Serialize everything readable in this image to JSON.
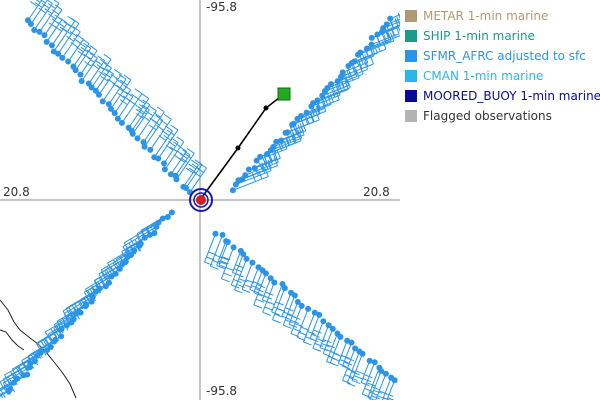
{
  "axes": {
    "top_lon": "-95.8",
    "bottom_lon": "-95.8",
    "left_lat": "20.8",
    "right_lat": "20.8"
  },
  "legend": [
    {
      "label": "METAR 1-min marine",
      "color": "#b09a73",
      "swatch": "#b09a73"
    },
    {
      "label": "SHIP 1-min marine",
      "color": "#1a9a8c",
      "swatch": "#1a9a8c"
    },
    {
      "label": "SFMR_AFRC adjusted to sfc",
      "color": "#2a95e8",
      "swatch": "#2a95e8"
    },
    {
      "label": "CMAN 1-min marine",
      "color": "#2ab7e8",
      "swatch": "#2ab7e8"
    },
    {
      "label": "MOORED_BUOY 1-min marine",
      "color": "#0a0a9a",
      "swatch": "#0a0a9a"
    },
    {
      "label": "Flagged observations",
      "color": "#333333",
      "swatch": "#b3b3b3"
    }
  ],
  "colors": {
    "obs": "#2a95e8",
    "track": "#000000",
    "track_end": "#22aa22",
    "center": "#cc2222",
    "ring": "#1a1aaa",
    "crosshair": "#888888",
    "coast": "#222222"
  }
}
